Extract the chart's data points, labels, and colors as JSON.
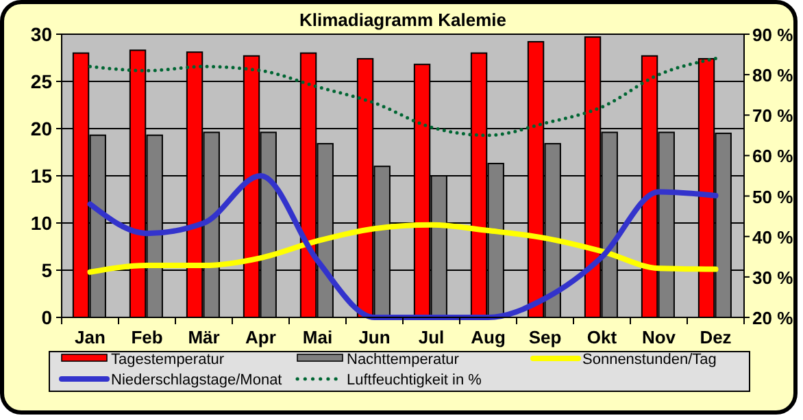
{
  "chart_data": {
    "type": "bar",
    "title": "Klimadiagramm Kalemie",
    "categories": [
      "Jan",
      "Feb",
      "Mär",
      "Apr",
      "Mai",
      "Jun",
      "Jul",
      "Aug",
      "Sep",
      "Okt",
      "Nov",
      "Dez"
    ],
    "series": [
      {
        "name": "Tagestemperatur",
        "color": "#ff0000",
        "values": [
          28,
          28.3,
          28.1,
          27.7,
          28,
          27.4,
          26.8,
          28,
          29.2,
          29.7,
          27.7,
          27.4
        ]
      },
      {
        "name": "Nachttemperatur",
        "color": "#808080",
        "values": [
          19.3,
          19.3,
          19.6,
          19.6,
          18.4,
          16,
          15,
          16.3,
          18.4,
          19.6,
          19.6,
          19.5
        ]
      },
      {
        "name": "Sonnenstunden/Tag",
        "type": "line",
        "color": "#ffff00",
        "values": [
          4.8,
          5.5,
          5.5,
          6.3,
          8.1,
          9.4,
          9.8,
          9.2,
          8.4,
          7,
          5.2,
          5.1
        ]
      },
      {
        "name": "Niederschlagstage/Monat",
        "type": "line",
        "color": "#3333cc",
        "values": [
          12,
          8.9,
          10,
          15,
          6,
          0,
          0,
          0,
          2,
          6.4,
          13.3,
          12.9
        ]
      },
      {
        "name": "Luftfeuchtigkeit in %",
        "type": "line",
        "axis": "y2",
        "color": "#006633",
        "line_style": "dotted",
        "values": [
          82,
          81,
          82,
          81,
          77,
          73,
          67,
          65,
          68,
          72,
          80,
          84
        ]
      }
    ],
    "ylim": [
      0,
      30
    ],
    "yticks": [
      0,
      5,
      10,
      15,
      20,
      25,
      30
    ],
    "y2lim": [
      20,
      90
    ],
    "y2ticks": [
      {
        "value": 20,
        "label": "20 %"
      },
      {
        "value": 30,
        "label": "30 %"
      },
      {
        "value": 40,
        "label": "40 %"
      },
      {
        "value": 50,
        "label": "50 %"
      },
      {
        "value": 60,
        "label": "60 %"
      },
      {
        "value": 70,
        "label": "70 %"
      },
      {
        "value": 80,
        "label": "80 %"
      },
      {
        "value": 90,
        "label": "90 %"
      }
    ],
    "grid": "y",
    "legend": "bottom"
  }
}
